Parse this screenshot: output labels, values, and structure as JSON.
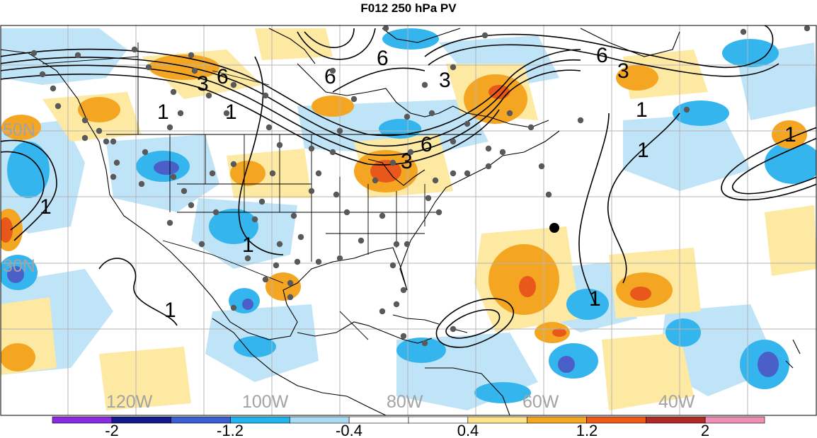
{
  "title": "F012 250 hPa PV",
  "lon_labels": [
    "120W",
    "100W",
    "80W",
    "60W",
    "40W"
  ],
  "lat_labels": [
    "50N",
    "30N"
  ],
  "contour_labels": [
    "6",
    "3",
    "1",
    "6",
    "6",
    "3",
    "6",
    "3",
    "1",
    "1",
    "3",
    "6",
    "1",
    "1",
    "1",
    "1",
    "1",
    "1"
  ],
  "colorbar": {
    "labels": [
      "-2",
      "-1.2",
      "-0.4",
      "0.4",
      "1.2",
      "2"
    ],
    "colors": [
      "#8a2be2",
      "#111a8a",
      "#3a5fd0",
      "#21b4ee",
      "#a9dcf4",
      "#ffffff",
      "#ffffff",
      "#ffe48a",
      "#f3a820",
      "#ee5a16",
      "#b02a24",
      "#f08eb6"
    ]
  },
  "colors": {
    "neg_light": "#bfe4f7",
    "neg_mid": "#35b5ee",
    "neg_dark": "#4a5fc8",
    "pos_light": "#fde9a2",
    "pos_mid": "#f4a623",
    "pos_dark": "#e8581a",
    "station_dot": "#595959"
  }
}
